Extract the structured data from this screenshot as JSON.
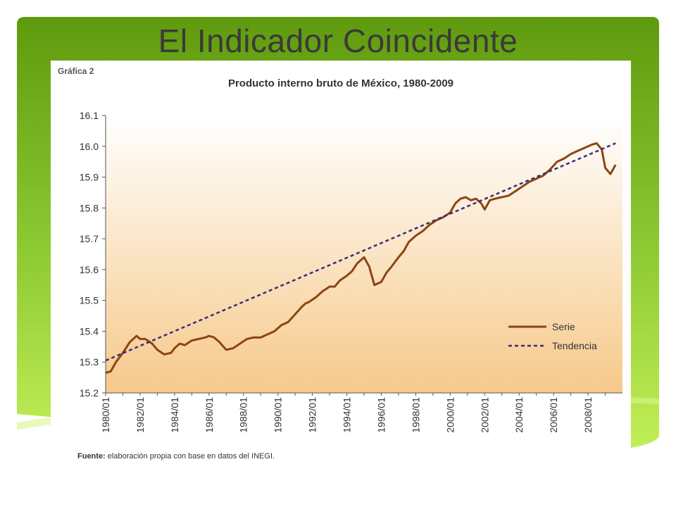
{
  "slide": {
    "title": "El Indicador Coincidente",
    "colors": {
      "green_dark": "#5f9a0e",
      "green_light": "#c7f25a"
    }
  },
  "chart_data": {
    "type": "line",
    "label": "Gráfica 2",
    "title": "Producto interno bruto de México, 1980-2009",
    "source_prefix": "Fuente:",
    "source_text": "elaboración propia con base en datos del INEGI.",
    "ylim": [
      15.2,
      16.1
    ],
    "yticks": [
      "15.2",
      "15.3",
      "15.4",
      "15.5",
      "15.6",
      "15.7",
      "15.8",
      "15.9",
      "16.0",
      "16.1"
    ],
    "xlim": [
      1980,
      2010
    ],
    "xticks": [
      "1980/01",
      "1982/01",
      "1984/01",
      "1986/01",
      "1988/01",
      "1990/01",
      "1992/01",
      "1994/01",
      "1996/01",
      "1998/01",
      "2000/01",
      "2002/01",
      "2004/01",
      "2006/01",
      "2008/01"
    ],
    "legend_position": "right",
    "grid": false,
    "series": [
      {
        "name": "Serie",
        "color": "#8b4513",
        "style": "solid",
        "x": [
          1980.0,
          1980.3,
          1980.6,
          1981.0,
          1981.4,
          1981.8,
          1982.0,
          1982.3,
          1982.7,
          1983.0,
          1983.4,
          1983.8,
          1984.0,
          1984.3,
          1984.6,
          1985.0,
          1985.4,
          1985.8,
          1986.0,
          1986.3,
          1986.6,
          1987.0,
          1987.4,
          1987.8,
          1988.2,
          1988.6,
          1989.0,
          1989.4,
          1989.8,
          1990.2,
          1990.6,
          1991.0,
          1991.4,
          1991.6,
          1991.8,
          1992.2,
          1992.6,
          1993.0,
          1993.3,
          1993.6,
          1994.0,
          1994.3,
          1994.6,
          1995.0,
          1995.3,
          1995.6,
          1996.0,
          1996.3,
          1996.6,
          1997.0,
          1997.3,
          1997.6,
          1998.0,
          1998.4,
          1998.8,
          1999.2,
          1999.6,
          2000.0,
          2000.3,
          2000.6,
          2000.9,
          2001.2,
          2001.5,
          2001.8,
          2002.0,
          2002.3,
          2002.6,
          2003.0,
          2003.4,
          2003.8,
          2004.2,
          2004.6,
          2005.0,
          2005.4,
          2005.8,
          2006.2,
          2006.6,
          2007.0,
          2007.4,
          2007.8,
          2008.2,
          2008.5,
          2008.8,
          2009.0,
          2009.3,
          2009.6
        ],
        "values": [
          15.265,
          15.27,
          15.3,
          15.33,
          15.365,
          15.385,
          15.375,
          15.375,
          15.36,
          15.34,
          15.325,
          15.33,
          15.345,
          15.36,
          15.355,
          15.37,
          15.375,
          15.38,
          15.385,
          15.38,
          15.365,
          15.34,
          15.345,
          15.36,
          15.375,
          15.38,
          15.38,
          15.39,
          15.4,
          15.42,
          15.43,
          15.455,
          15.48,
          15.49,
          15.495,
          15.51,
          15.53,
          15.545,
          15.545,
          15.565,
          15.58,
          15.595,
          15.62,
          15.64,
          15.61,
          15.55,
          15.56,
          15.59,
          15.61,
          15.64,
          15.66,
          15.69,
          15.71,
          15.725,
          15.745,
          15.76,
          15.77,
          15.785,
          15.815,
          15.83,
          15.835,
          15.825,
          15.83,
          15.815,
          15.795,
          15.825,
          15.83,
          15.835,
          15.84,
          15.855,
          15.87,
          15.885,
          15.895,
          15.905,
          15.925,
          15.95,
          15.96,
          15.975,
          15.985,
          15.995,
          16.005,
          16.01,
          15.99,
          15.93,
          15.91,
          15.94
        ]
      },
      {
        "name": "Tendencia",
        "color": "#3d2c7a",
        "style": "dashed",
        "x": [
          1980.0,
          2009.6
        ],
        "values": [
          15.305,
          16.01
        ]
      }
    ]
  }
}
